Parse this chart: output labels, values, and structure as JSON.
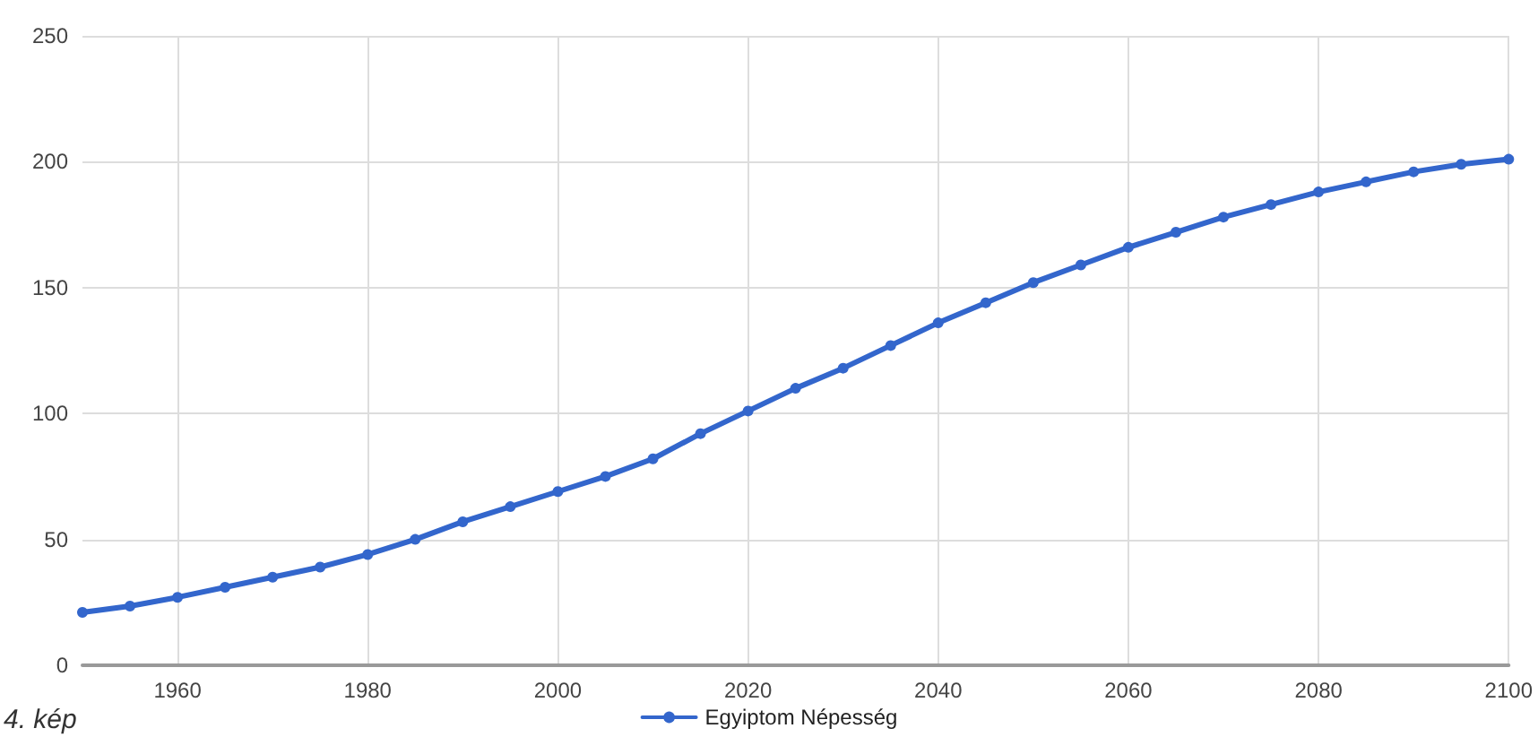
{
  "chart_data": {
    "type": "line",
    "annotations": [
      "4. kép"
    ],
    "x": [
      1950,
      1955,
      1960,
      1965,
      1970,
      1975,
      1980,
      1985,
      1990,
      1995,
      2000,
      2005,
      2010,
      2015,
      2020,
      2025,
      2030,
      2035,
      2040,
      2045,
      2050,
      2055,
      2060,
      2065,
      2070,
      2075,
      2080,
      2085,
      2090,
      2095,
      2100
    ],
    "series": [
      {
        "name": "Egyiptom Népesség",
        "color": "#3366cc",
        "values": [
          21,
          23.5,
          27,
          31,
          35,
          39,
          44,
          50,
          57,
          63,
          69,
          75,
          82,
          92,
          101,
          110,
          118,
          127,
          136,
          144,
          152,
          159,
          166,
          172,
          178,
          183,
          188,
          192,
          196,
          199,
          201
        ]
      }
    ],
    "xlim": [
      1950,
      2100
    ],
    "xticks": [
      1960,
      1980,
      2000,
      2020,
      2040,
      2060,
      2080,
      2100
    ],
    "ylim": [
      0,
      250
    ],
    "yticks": [
      0,
      50,
      100,
      150,
      200,
      250
    ],
    "grid": true,
    "legend": "bottom",
    "marker": "circle",
    "line_style": "solid"
  }
}
